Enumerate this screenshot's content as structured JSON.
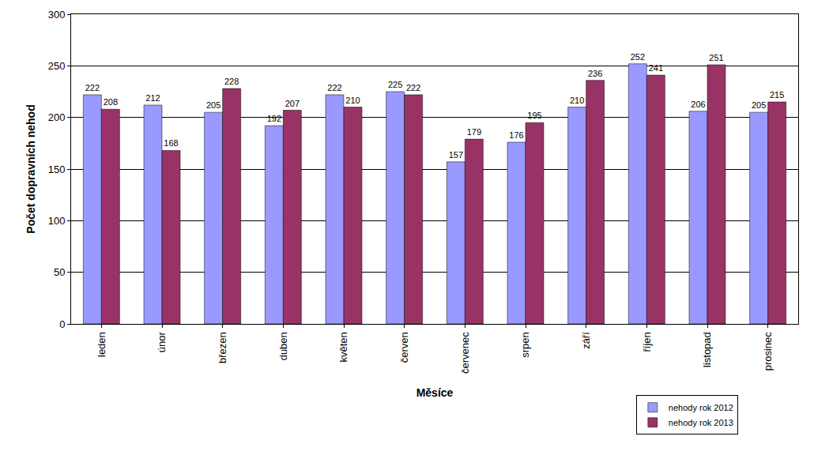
{
  "chart_data": {
    "type": "bar",
    "x_label": "Měsíce",
    "y_label": "Počet dopravních nehod",
    "categories": [
      "leden",
      "únor",
      "březen",
      "duben",
      "květen",
      "červen",
      "červenec",
      "srpen",
      "září",
      "říjen",
      "listopad",
      "prosinec"
    ],
    "series": [
      {
        "name": "nehody rok 2012",
        "color": "#9999ff",
        "values": [
          222,
          212,
          205,
          192,
          222,
          225,
          157,
          176,
          210,
          252,
          206,
          205
        ]
      },
      {
        "name": "nehody rok 2013",
        "color": "#993366",
        "values": [
          208,
          168,
          228,
          207,
          210,
          222,
          179,
          195,
          236,
          241,
          251,
          215
        ]
      }
    ],
    "ylim": [
      0,
      300
    ],
    "yticks": [
      0,
      50,
      100,
      150,
      200,
      250,
      300
    ],
    "grid": true,
    "data_labels": true,
    "legend": "bottom right"
  }
}
